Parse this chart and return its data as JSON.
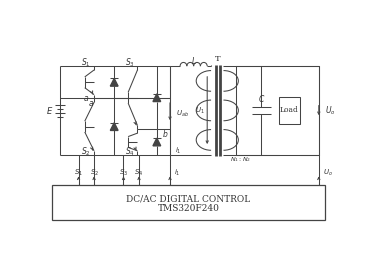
{
  "bg": "#ffffff",
  "lc": "#444444",
  "tc": "#333333",
  "fw": 3.68,
  "fh": 2.56,
  "dpi": 100,
  "ctrl_text1": "DC/AC DIGITAL CONTROL",
  "ctrl_text2": "TMS320F240"
}
